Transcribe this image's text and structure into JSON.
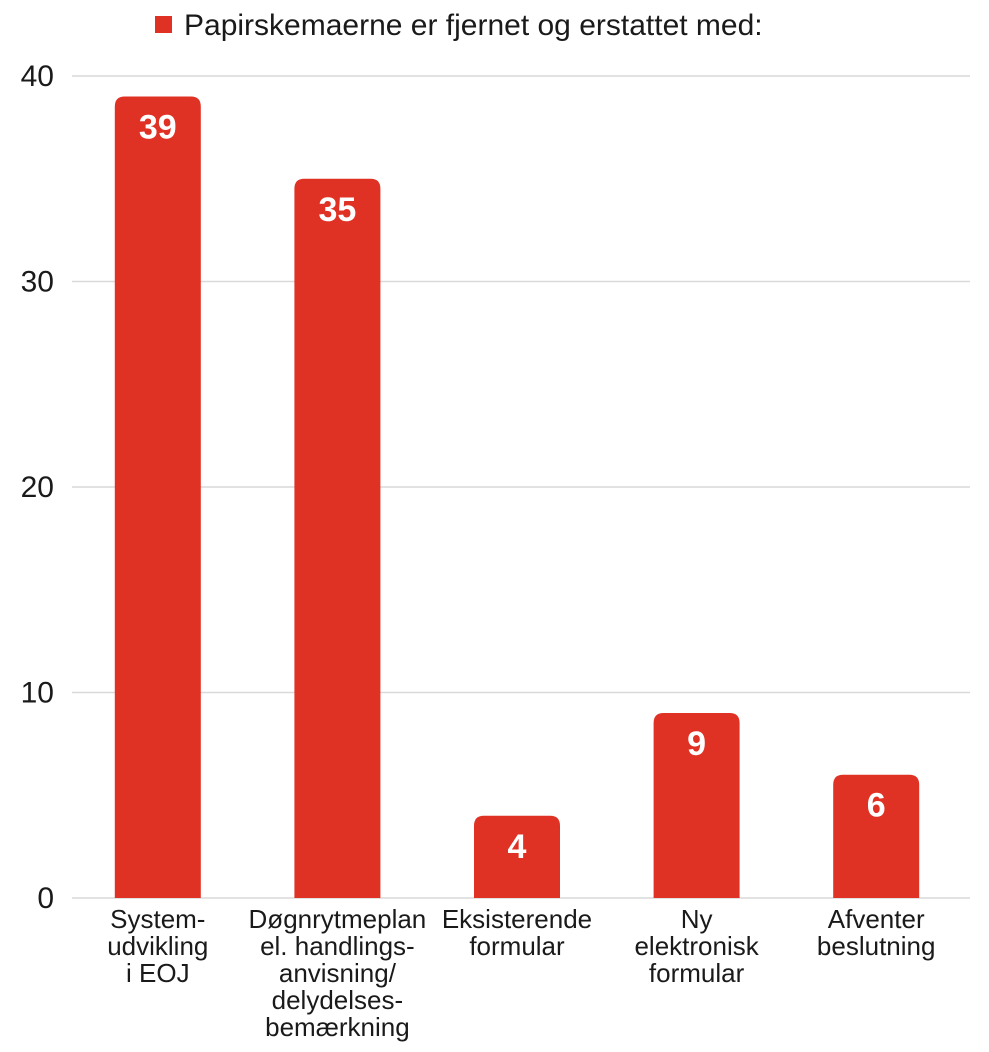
{
  "chart_data": {
    "type": "bar",
    "categories": [
      [
        "System-",
        "udvikling",
        "i EOJ"
      ],
      [
        "Døgnrytmeplan",
        "el. handlings-",
        "anvisning/",
        "delydelses-",
        "bemærkning"
      ],
      [
        "Eksisterende",
        "formular"
      ],
      [
        "Ny",
        "elektronisk",
        "formular"
      ],
      [
        "Afventer",
        "beslutning"
      ]
    ],
    "series": [
      {
        "name": "Papirskemaerne er fjernet og erstattet med:",
        "values": [
          39,
          35,
          4,
          9,
          6
        ]
      }
    ],
    "data_labels": [
      "39",
      "35",
      "4",
      "9",
      "6"
    ],
    "ylim": [
      0,
      40
    ],
    "yticks": [
      0,
      10,
      20,
      30,
      40
    ],
    "ytick_labels": [
      "0",
      "10",
      "20",
      "30",
      "40"
    ],
    "grid": true,
    "legend_position": "top-center",
    "colors": {
      "bar": "#e03224",
      "grid": "#d9d9d9",
      "text": "#1a1a1a",
      "label": "#ffffff"
    }
  }
}
